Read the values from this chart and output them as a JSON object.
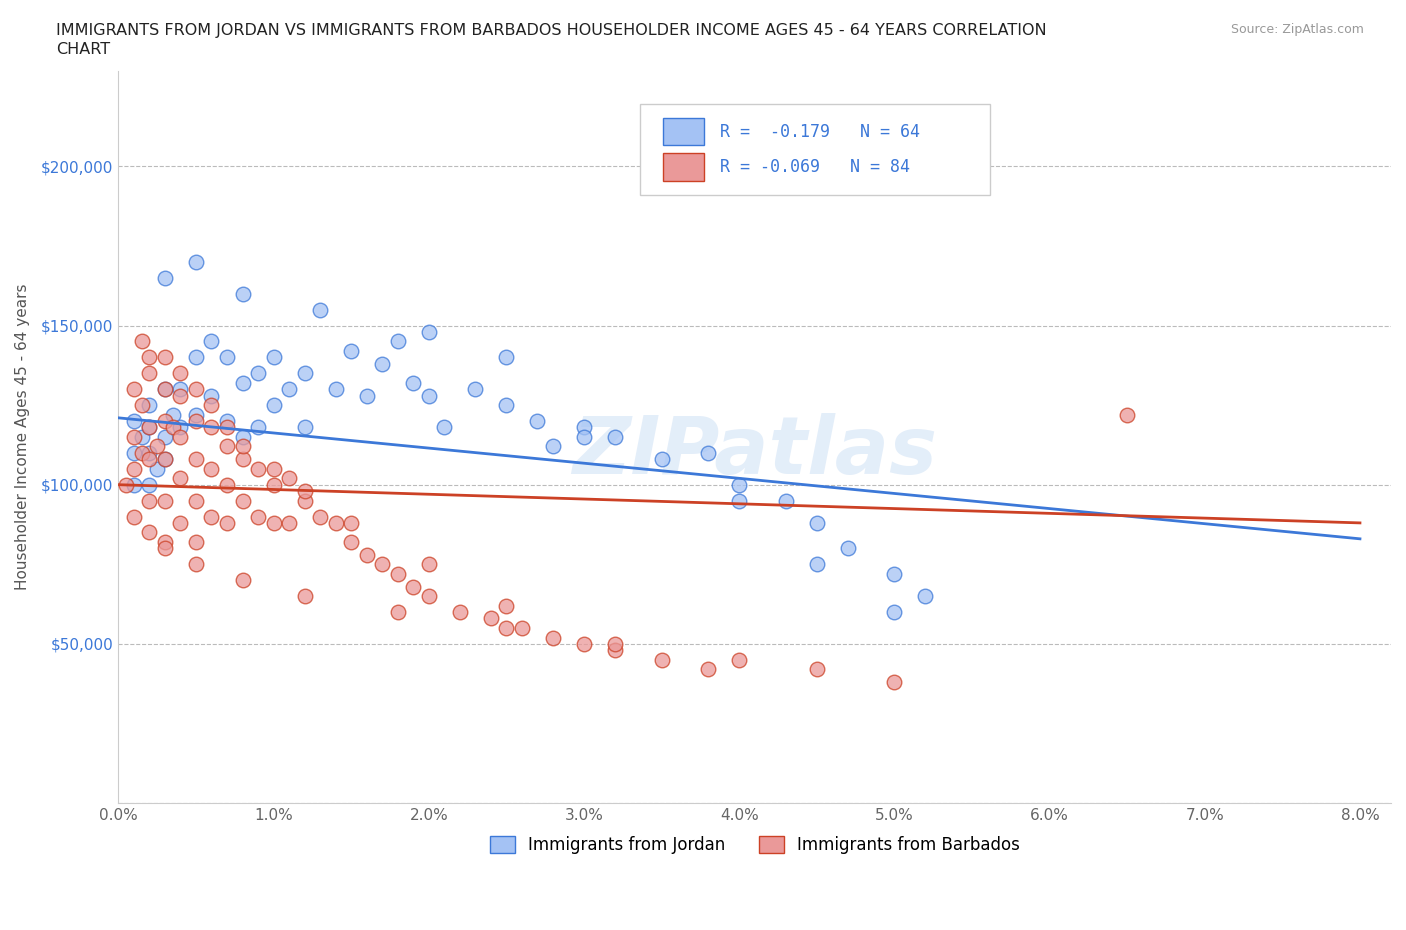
{
  "title_line1": "IMMIGRANTS FROM JORDAN VS IMMIGRANTS FROM BARBADOS HOUSEHOLDER INCOME AGES 45 - 64 YEARS CORRELATION",
  "title_line2": "CHART",
  "source": "Source: ZipAtlas.com",
  "ylabel": "Householder Income Ages 45 - 64 years",
  "xlim": [
    0.0,
    0.082
  ],
  "ylim": [
    0,
    230000
  ],
  "yticks": [
    0,
    50000,
    100000,
    150000,
    200000
  ],
  "ytick_labels": [
    "",
    "$50,000",
    "$100,000",
    "$150,000",
    "$200,000"
  ],
  "xticks": [
    0.0,
    0.01,
    0.02,
    0.03,
    0.04,
    0.05,
    0.06,
    0.07,
    0.08
  ],
  "xtick_labels": [
    "0.0%",
    "1.0%",
    "2.0%",
    "3.0%",
    "4.0%",
    "5.0%",
    "6.0%",
    "7.0%",
    "8.0%"
  ],
  "jordan_color": "#a4c2f4",
  "barbados_color": "#ea9999",
  "jordan_line_color": "#3c78d8",
  "barbados_line_color": "#cc4125",
  "jordan_R": -0.179,
  "jordan_N": 64,
  "barbados_R": -0.069,
  "barbados_N": 84,
  "watermark": "ZIPatlas",
  "legend_label_jordan": "Immigrants from Jordan",
  "legend_label_barbados": "Immigrants from Barbados"
}
